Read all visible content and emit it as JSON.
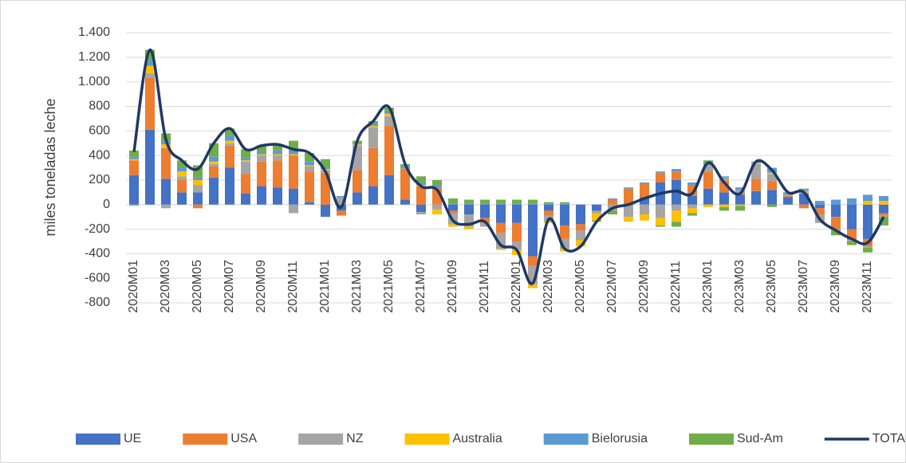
{
  "chart_data": {
    "type": "bar",
    "stacked": true,
    "grid": true,
    "legend": "bottom",
    "ylabel": "miles toneladas leche",
    "ylim": [
      -800,
      1400
    ],
    "yticks": [
      -800,
      -600,
      -400,
      -200,
      0,
      200,
      400,
      600,
      800,
      {
        "value": 1000,
        "label": "1.000"
      },
      {
        "value": 1200,
        "label": "1.200"
      },
      {
        "value": 1400,
        "label": "1.400"
      }
    ],
    "categories": [
      "2020M01",
      null,
      "2020M03",
      null,
      "2020M05",
      null,
      "2020M07",
      null,
      "2020M09",
      null,
      "2020M11",
      null,
      "2021M01",
      null,
      "2021M03",
      null,
      "2021M05",
      null,
      "2021M07",
      null,
      "2021M09",
      null,
      "2021M11",
      null,
      "2022M01",
      null,
      "2022M03",
      null,
      "2022M05",
      null,
      "2022M07",
      null,
      "2022M09",
      null,
      "2022M11",
      null,
      "2023M01",
      null,
      "2023M03",
      null,
      "2023M05",
      null,
      "2023M07",
      null,
      "2023M09",
      null,
      "2023M11",
      null
    ],
    "series": [
      {
        "name": "UE",
        "color": "#4472c4",
        "values": [
          240,
          610,
          210,
          100,
          100,
          220,
          300,
          90,
          150,
          140,
          130,
          20,
          -100,
          -50,
          100,
          150,
          240,
          40,
          -60,
          0,
          -50,
          -80,
          -110,
          -150,
          -150,
          -420,
          -50,
          -170,
          -160,
          -50,
          0,
          0,
          60,
          180,
          200,
          70,
          130,
          100,
          80,
          110,
          120,
          60,
          90,
          -30,
          -100,
          -200,
          -280,
          -70
        ]
      },
      {
        "name": "USA",
        "color": "#ed7d31",
        "values": [
          120,
          420,
          250,
          100,
          -30,
          90,
          180,
          160,
          200,
          220,
          270,
          250,
          260,
          -40,
          180,
          310,
          400,
          250,
          150,
          140,
          -20,
          0,
          -40,
          -80,
          -150,
          -80,
          -40,
          -110,
          -50,
          0,
          40,
          130,
          110,
          80,
          70,
          90,
          140,
          90,
          10,
          100,
          70,
          10,
          -30,
          -50,
          -100,
          -90,
          -60,
          -20
        ]
      },
      {
        "name": "NZ",
        "color": "#a5a5a5",
        "values": [
          -10,
          40,
          -30,
          30,
          60,
          20,
          20,
          100,
          50,
          40,
          -70,
          40,
          20,
          60,
          200,
          170,
          80,
          10,
          -20,
          -40,
          -90,
          -100,
          -30,
          -130,
          -70,
          -150,
          -50,
          -80,
          -80,
          -20,
          -50,
          -100,
          -80,
          -110,
          -50,
          -30,
          50,
          30,
          30,
          120,
          60,
          10,
          10,
          -70,
          -10,
          -10,
          -10,
          -10
        ]
      },
      {
        "name": "Australia",
        "color": "#ffc000",
        "values": [
          10,
          60,
          30,
          40,
          40,
          20,
          20,
          10,
          10,
          10,
          10,
          10,
          10,
          0,
          10,
          10,
          20,
          0,
          10,
          -40,
          -20,
          -20,
          0,
          -10,
          -40,
          -30,
          -10,
          -20,
          -50,
          -60,
          0,
          -40,
          -50,
          -60,
          -90,
          -40,
          -20,
          -20,
          -10,
          10,
          10,
          0,
          10,
          0,
          0,
          0,
          30,
          30
        ]
      },
      {
        "name": "Bielorusia",
        "color": "#5b9bd5",
        "values": [
          20,
          40,
          20,
          30,
          20,
          40,
          40,
          20,
          20,
          30,
          30,
          30,
          10,
          10,
          10,
          20,
          20,
          10,
          20,
          20,
          10,
          10,
          10,
          10,
          10,
          10,
          10,
          10,
          0,
          0,
          10,
          10,
          10,
          10,
          20,
          20,
          20,
          10,
          20,
          10,
          40,
          20,
          10,
          30,
          40,
          50,
          50,
          40
        ]
      },
      {
        "name": "Sud-Am",
        "color": "#70ad47",
        "values": [
          50,
          90,
          70,
          60,
          100,
          110,
          60,
          70,
          50,
          50,
          80,
          70,
          70,
          0,
          20,
          20,
          30,
          20,
          50,
          40,
          40,
          30,
          30,
          30,
          30,
          30,
          10,
          10,
          0,
          -10,
          -30,
          0,
          0,
          -10,
          -40,
          -20,
          20,
          -30,
          -40,
          0,
          -20,
          0,
          10,
          0,
          -40,
          -30,
          -40,
          -70
        ]
      },
      {
        "name": "TOTAL",
        "type": "line",
        "color": "#203864",
        "values": [
          430,
          1260,
          530,
          360,
          290,
          500,
          620,
          450,
          480,
          490,
          450,
          420,
          270,
          -20,
          520,
          680,
          790,
          330,
          150,
          120,
          -130,
          -160,
          -140,
          -330,
          -370,
          -640,
          -120,
          -360,
          -340,
          -140,
          -30,
          0,
          50,
          90,
          110,
          90,
          340,
          180,
          90,
          350,
          280,
          100,
          100,
          -120,
          -210,
          -280,
          -310,
          -100
        ]
      }
    ]
  }
}
